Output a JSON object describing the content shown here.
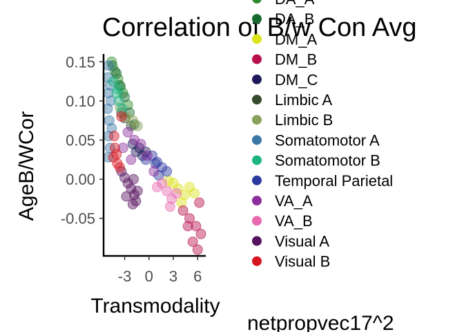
{
  "chart_data": {
    "type": "scatter",
    "title": "Correlation of B/w Con Avg",
    "xlabel": "Transmodality",
    "ylabel": "AgeB/WCor",
    "xlim": [
      -5.6,
      7.0
    ],
    "ylim": [
      -0.098,
      0.16
    ],
    "xticks": [
      -3,
      0,
      3,
      6
    ],
    "yticks": [
      0.15,
      0.1,
      0.05,
      0.0,
      -0.05
    ],
    "xtick_labels": [
      "-3",
      "0",
      "3",
      "6"
    ],
    "ytick_labels": [
      "0.15",
      "0.10",
      "0.05",
      "0.00",
      "-0.05"
    ],
    "grid": false,
    "legend_position": "right",
    "caption": "netpropvec17^2",
    "series": [
      {
        "name": "DA_A",
        "color": "#2E8B2E",
        "points": [
          [
            -4.6,
            0.15
          ],
          [
            -4.2,
            0.138
          ],
          [
            -3.8,
            0.128
          ],
          [
            -3.5,
            0.118
          ],
          [
            -3.2,
            0.11
          ],
          [
            -2.6,
            0.095
          ]
        ]
      },
      {
        "name": "DA_B",
        "color": "#176A2E",
        "points": [
          [
            -4.5,
            0.145
          ],
          [
            -4.0,
            0.135
          ],
          [
            -3.6,
            0.12
          ],
          [
            -3.0,
            0.105
          ],
          [
            -2.4,
            0.085
          ],
          [
            -1.8,
            0.07
          ]
        ]
      },
      {
        "name": "DM_A",
        "color": "#DCE21C",
        "points": [
          [
            3.0,
            -0.005
          ],
          [
            3.6,
            -0.012
          ],
          [
            4.4,
            -0.02
          ],
          [
            5.0,
            -0.01
          ],
          [
            2.4,
            -0.002
          ],
          [
            5.6,
            -0.018
          ],
          [
            4.0,
            -0.03
          ]
        ]
      },
      {
        "name": "DM_B",
        "color": "#B7104C",
        "points": [
          [
            4.2,
            -0.04
          ],
          [
            5.0,
            -0.05
          ],
          [
            5.8,
            -0.06
          ],
          [
            6.4,
            -0.07
          ],
          [
            6.2,
            -0.03
          ],
          [
            5.4,
            -0.08
          ],
          [
            6.0,
            -0.09
          ],
          [
            4.8,
            -0.06
          ]
        ]
      },
      {
        "name": "DM_C",
        "color": "#1E1A5C",
        "points": [
          [
            -2.0,
            0.045
          ],
          [
            -1.6,
            0.035
          ],
          [
            -1.2,
            0.04
          ],
          [
            -0.8,
            0.03
          ],
          [
            -0.4,
            0.035
          ]
        ]
      },
      {
        "name": "Limbic A",
        "color": "#374A2E",
        "points": [
          [
            -3.4,
            0.085
          ],
          [
            -3.0,
            0.078
          ],
          [
            -2.2,
            0.068
          ]
        ]
      },
      {
        "name": "Limbic B",
        "color": "#8AA15C",
        "points": [
          [
            -3.6,
            0.092
          ],
          [
            -2.8,
            0.08
          ],
          [
            -2.0,
            0.075
          ],
          [
            -1.4,
            0.068
          ]
        ]
      },
      {
        "name": "Somatomotor A",
        "color": "#3A77A5",
        "points": [
          [
            -5.0,
            0.145
          ],
          [
            -5.1,
            0.13
          ],
          [
            -4.8,
            0.12
          ],
          [
            -5.0,
            0.11
          ],
          [
            -4.7,
            0.1
          ],
          [
            -5.1,
            0.09
          ],
          [
            -4.9,
            0.075
          ],
          [
            -4.6,
            0.065
          ],
          [
            -5.0,
            0.055
          ],
          [
            -4.8,
            0.04
          ],
          [
            -5.0,
            0.028
          ]
        ]
      },
      {
        "name": "Somatomotor B",
        "color": "#1BB380",
        "points": [
          [
            -4.4,
            0.125
          ],
          [
            -4.0,
            0.11
          ],
          [
            -3.7,
            0.1
          ],
          [
            -3.3,
            0.09
          ],
          [
            -3.8,
            0.115
          ]
        ]
      },
      {
        "name": "Temporal Parietal",
        "color": "#2C3A9E",
        "points": [
          [
            -0.4,
            0.025
          ],
          [
            0.4,
            0.03
          ],
          [
            1.0,
            0.022
          ],
          [
            1.6,
            0.015
          ],
          [
            2.2,
            0.01
          ],
          [
            1.2,
            0.005
          ],
          [
            0.8,
            0.02
          ]
        ]
      },
      {
        "name": "VA_A",
        "color": "#8C2E9E",
        "points": [
          [
            -2.6,
            0.06
          ],
          [
            -1.8,
            0.05
          ],
          [
            -1.0,
            0.045
          ],
          [
            -0.2,
            0.03
          ],
          [
            0.6,
            0.01
          ],
          [
            -3.2,
            0.04
          ],
          [
            -2.2,
            0.025
          ]
        ]
      },
      {
        "name": "VA_B",
        "color": "#E869B0",
        "points": [
          [
            1.6,
            -0.005
          ],
          [
            2.2,
            -0.015
          ],
          [
            2.8,
            -0.025
          ],
          [
            3.4,
            -0.018
          ],
          [
            1.0,
            -0.01
          ],
          [
            2.6,
            -0.035
          ]
        ]
      },
      {
        "name": "Visual A",
        "color": "#56125E",
        "points": [
          [
            -3.4,
            0.01
          ],
          [
            -3.0,
            0.002
          ],
          [
            -2.6,
            -0.005
          ],
          [
            -2.2,
            -0.012
          ],
          [
            -1.8,
            -0.02
          ],
          [
            -1.6,
            -0.028
          ],
          [
            -2.0,
            -0.032
          ],
          [
            -1.4,
            -0.015
          ],
          [
            -2.8,
            -0.022
          ],
          [
            -1.9,
            0.0
          ]
        ]
      },
      {
        "name": "Visual B",
        "color": "#D7141E",
        "points": [
          [
            -4.2,
            0.04
          ],
          [
            -4.0,
            0.032
          ],
          [
            -4.4,
            0.028
          ],
          [
            -3.9,
            0.02
          ],
          [
            -3.6,
            0.015
          ],
          [
            -4.3,
            0.055
          ],
          [
            -3.4,
            0.08
          ]
        ]
      }
    ]
  }
}
